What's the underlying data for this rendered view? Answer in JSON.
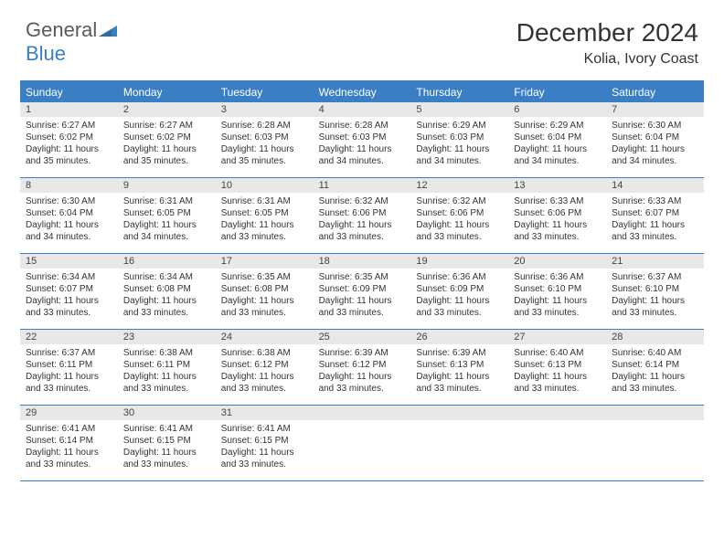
{
  "logo": {
    "word1": "General",
    "word2": "Blue"
  },
  "title": "December 2024",
  "location": "Kolia, Ivory Coast",
  "weekday_header_bg": "#3a7fc4",
  "weekdays": [
    "Sunday",
    "Monday",
    "Tuesday",
    "Wednesday",
    "Thursday",
    "Friday",
    "Saturday"
  ],
  "days": [
    {
      "n": 1,
      "sunrise": "6:27 AM",
      "sunset": "6:02 PM",
      "daylight": "11 hours and 35 minutes."
    },
    {
      "n": 2,
      "sunrise": "6:27 AM",
      "sunset": "6:02 PM",
      "daylight": "11 hours and 35 minutes."
    },
    {
      "n": 3,
      "sunrise": "6:28 AM",
      "sunset": "6:03 PM",
      "daylight": "11 hours and 35 minutes."
    },
    {
      "n": 4,
      "sunrise": "6:28 AM",
      "sunset": "6:03 PM",
      "daylight": "11 hours and 34 minutes."
    },
    {
      "n": 5,
      "sunrise": "6:29 AM",
      "sunset": "6:03 PM",
      "daylight": "11 hours and 34 minutes."
    },
    {
      "n": 6,
      "sunrise": "6:29 AM",
      "sunset": "6:04 PM",
      "daylight": "11 hours and 34 minutes."
    },
    {
      "n": 7,
      "sunrise": "6:30 AM",
      "sunset": "6:04 PM",
      "daylight": "11 hours and 34 minutes."
    },
    {
      "n": 8,
      "sunrise": "6:30 AM",
      "sunset": "6:04 PM",
      "daylight": "11 hours and 34 minutes."
    },
    {
      "n": 9,
      "sunrise": "6:31 AM",
      "sunset": "6:05 PM",
      "daylight": "11 hours and 34 minutes."
    },
    {
      "n": 10,
      "sunrise": "6:31 AM",
      "sunset": "6:05 PM",
      "daylight": "11 hours and 33 minutes."
    },
    {
      "n": 11,
      "sunrise": "6:32 AM",
      "sunset": "6:06 PM",
      "daylight": "11 hours and 33 minutes."
    },
    {
      "n": 12,
      "sunrise": "6:32 AM",
      "sunset": "6:06 PM",
      "daylight": "11 hours and 33 minutes."
    },
    {
      "n": 13,
      "sunrise": "6:33 AM",
      "sunset": "6:06 PM",
      "daylight": "11 hours and 33 minutes."
    },
    {
      "n": 14,
      "sunrise": "6:33 AM",
      "sunset": "6:07 PM",
      "daylight": "11 hours and 33 minutes."
    },
    {
      "n": 15,
      "sunrise": "6:34 AM",
      "sunset": "6:07 PM",
      "daylight": "11 hours and 33 minutes."
    },
    {
      "n": 16,
      "sunrise": "6:34 AM",
      "sunset": "6:08 PM",
      "daylight": "11 hours and 33 minutes."
    },
    {
      "n": 17,
      "sunrise": "6:35 AM",
      "sunset": "6:08 PM",
      "daylight": "11 hours and 33 minutes."
    },
    {
      "n": 18,
      "sunrise": "6:35 AM",
      "sunset": "6:09 PM",
      "daylight": "11 hours and 33 minutes."
    },
    {
      "n": 19,
      "sunrise": "6:36 AM",
      "sunset": "6:09 PM",
      "daylight": "11 hours and 33 minutes."
    },
    {
      "n": 20,
      "sunrise": "6:36 AM",
      "sunset": "6:10 PM",
      "daylight": "11 hours and 33 minutes."
    },
    {
      "n": 21,
      "sunrise": "6:37 AM",
      "sunset": "6:10 PM",
      "daylight": "11 hours and 33 minutes."
    },
    {
      "n": 22,
      "sunrise": "6:37 AM",
      "sunset": "6:11 PM",
      "daylight": "11 hours and 33 minutes."
    },
    {
      "n": 23,
      "sunrise": "6:38 AM",
      "sunset": "6:11 PM",
      "daylight": "11 hours and 33 minutes."
    },
    {
      "n": 24,
      "sunrise": "6:38 AM",
      "sunset": "6:12 PM",
      "daylight": "11 hours and 33 minutes."
    },
    {
      "n": 25,
      "sunrise": "6:39 AM",
      "sunset": "6:12 PM",
      "daylight": "11 hours and 33 minutes."
    },
    {
      "n": 26,
      "sunrise": "6:39 AM",
      "sunset": "6:13 PM",
      "daylight": "11 hours and 33 minutes."
    },
    {
      "n": 27,
      "sunrise": "6:40 AM",
      "sunset": "6:13 PM",
      "daylight": "11 hours and 33 minutes."
    },
    {
      "n": 28,
      "sunrise": "6:40 AM",
      "sunset": "6:14 PM",
      "daylight": "11 hours and 33 minutes."
    },
    {
      "n": 29,
      "sunrise": "6:41 AM",
      "sunset": "6:14 PM",
      "daylight": "11 hours and 33 minutes."
    },
    {
      "n": 30,
      "sunrise": "6:41 AM",
      "sunset": "6:15 PM",
      "daylight": "11 hours and 33 minutes."
    },
    {
      "n": 31,
      "sunrise": "6:41 AM",
      "sunset": "6:15 PM",
      "daylight": "11 hours and 33 minutes."
    }
  ],
  "labels": {
    "sunrise": "Sunrise:",
    "sunset": "Sunset:",
    "daylight": "Daylight:"
  }
}
